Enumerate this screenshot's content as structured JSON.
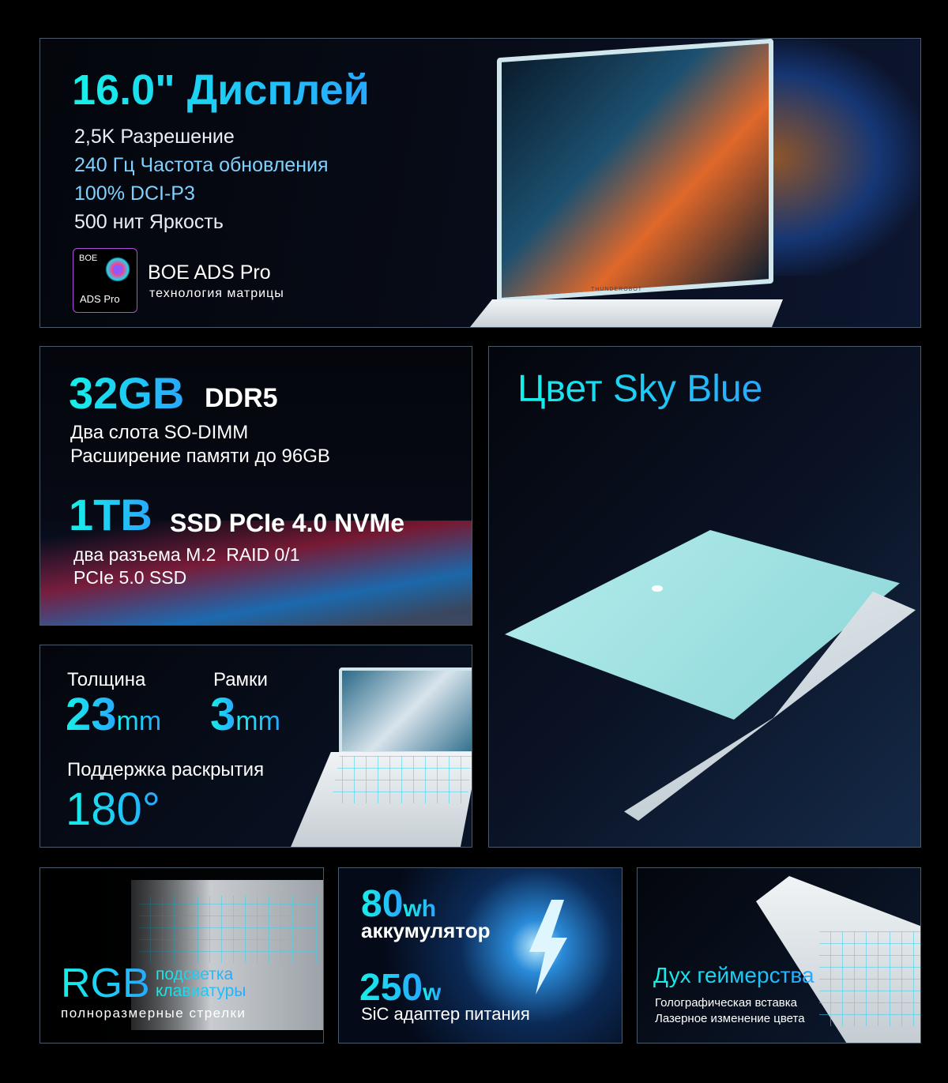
{
  "display": {
    "title": "16.0\" Дисплей",
    "specs": [
      "2,5K Разрешение",
      "240 Гц Частота обновления",
      "100% DCI-P3",
      "500 нит Яркость"
    ],
    "badge_brand": "BOE",
    "badge_label": "ADS Pro",
    "tech_title": "BOE ADS Pro",
    "tech_subtitle": "технология матрицы",
    "laptop_brand": "THUNDEROBOT"
  },
  "memory": {
    "ram_size": "32GB",
    "ram_type": "DDR5",
    "ram_lines": [
      "Два слота SO-DIMM",
      "Расширение памяти до 96GB"
    ],
    "ssd_size": "1TB",
    "ssd_type": "SSD PCIe 4.0 NVMe",
    "ssd_lines": [
      "два разъема M.2  RAID 0/1",
      "PCIe 5.0 SSD"
    ]
  },
  "color": {
    "title": "Цвет Sky Blue",
    "lid_color": "#9fe0e0"
  },
  "thickness": {
    "thickness_label": "Толщина",
    "thickness_value": "23",
    "thickness_unit": "mm",
    "bezel_label": "Рамки",
    "bezel_value": "3",
    "bezel_unit": "mm",
    "hinge_label": "Поддержка раскрытия",
    "hinge_value": "180°"
  },
  "keyboard": {
    "rgb": "RGB",
    "line1": "подсветка",
    "line2": "клавиатуры",
    "subtitle": "полноразмерные стрелки"
  },
  "battery": {
    "battery_value": "80",
    "battery_unit": "wh",
    "battery_label": "аккумулятор",
    "adapter_value": "250",
    "adapter_unit": "w",
    "adapter_label": "SiC адаптер питания"
  },
  "gaming": {
    "title": "Дух геймерства",
    "lines": [
      "Голографическая вставка",
      "Лазерное изменение цвета"
    ]
  },
  "accent_color": "#1ee8ec"
}
